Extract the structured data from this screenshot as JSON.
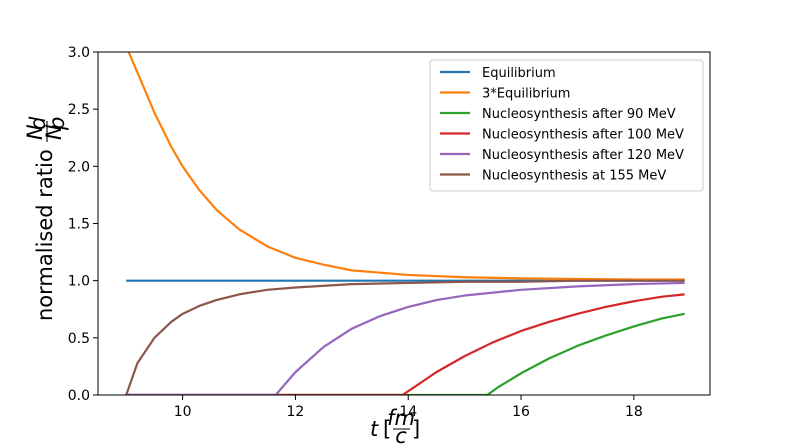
{
  "chart_data": {
    "type": "line",
    "title": "",
    "xlabel": {
      "main": "t",
      "frac_num": "fm",
      "frac_den": "c"
    },
    "ylabel": {
      "main": "normalised ratio",
      "frac_num": "N",
      "frac_num_sub": "d",
      "frac_den": "N",
      "frac_den_sub": "p"
    },
    "xlim": [
      8.5,
      19.35
    ],
    "ylim": [
      0.0,
      3.0
    ],
    "xticks": [
      10,
      12,
      14,
      16,
      18
    ],
    "yticks": [
      "0.0",
      "0.5",
      "1.0",
      "1.5",
      "2.0",
      "2.5",
      "3.0"
    ],
    "grid": false,
    "legend_position": "top-right",
    "series": [
      {
        "name": "Equilibrium",
        "color": "#1f77b4",
        "x": [
          9.0,
          18.9
        ],
        "y": [
          1.0,
          1.0
        ]
      },
      {
        "name": "3*Equilibrium",
        "color": "#ff7f0e",
        "x": [
          9.0,
          9.2,
          9.5,
          9.8,
          10.0,
          10.3,
          10.6,
          11.0,
          11.5,
          12.0,
          12.5,
          13.0,
          14.0,
          15.0,
          16.0,
          17.0,
          18.0,
          18.9
        ],
        "y": [
          3.05,
          2.82,
          2.47,
          2.17,
          2.0,
          1.79,
          1.62,
          1.45,
          1.3,
          1.2,
          1.14,
          1.09,
          1.05,
          1.03,
          1.02,
          1.015,
          1.01,
          1.01
        ]
      },
      {
        "name": "Nucleosynthesis after 90 MeV",
        "color": "#2ca02c",
        "x": [
          9.0,
          15.4,
          15.6,
          16.0,
          16.5,
          17.0,
          17.5,
          18.0,
          18.5,
          18.9
        ],
        "y": [
          0.0,
          0.0,
          0.07,
          0.19,
          0.32,
          0.43,
          0.52,
          0.6,
          0.67,
          0.71
        ]
      },
      {
        "name": "Nucleosynthesis after 100 MeV",
        "color": "#d62728",
        "x": [
          9.0,
          13.9,
          14.2,
          14.5,
          15.0,
          15.5,
          16.0,
          16.5,
          17.0,
          17.5,
          18.0,
          18.5,
          18.9
        ],
        "y": [
          0.0,
          0.0,
          0.1,
          0.2,
          0.34,
          0.46,
          0.56,
          0.64,
          0.71,
          0.77,
          0.82,
          0.86,
          0.88
        ]
      },
      {
        "name": "Nucleosynthesis after 120 MeV",
        "color": "#9467bd",
        "x": [
          9.0,
          11.65,
          12.0,
          12.5,
          13.0,
          13.5,
          14.0,
          14.5,
          15.0,
          16.0,
          17.0,
          18.0,
          18.9
        ],
        "y": [
          0.0,
          0.0,
          0.2,
          0.42,
          0.58,
          0.69,
          0.77,
          0.83,
          0.87,
          0.92,
          0.95,
          0.97,
          0.98
        ]
      },
      {
        "name": "Nucleosynthesis at 155 MeV",
        "color": "#8c564b",
        "x": [
          9.0,
          9.2,
          9.5,
          9.8,
          10.0,
          10.3,
          10.6,
          11.0,
          11.5,
          12.0,
          13.0,
          14.0,
          15.0,
          16.0,
          17.0,
          18.0,
          18.9
        ],
        "y": [
          0.0,
          0.28,
          0.5,
          0.64,
          0.71,
          0.78,
          0.83,
          0.88,
          0.92,
          0.94,
          0.97,
          0.98,
          0.99,
          0.99,
          1.0,
          1.0,
          1.0
        ]
      }
    ]
  }
}
